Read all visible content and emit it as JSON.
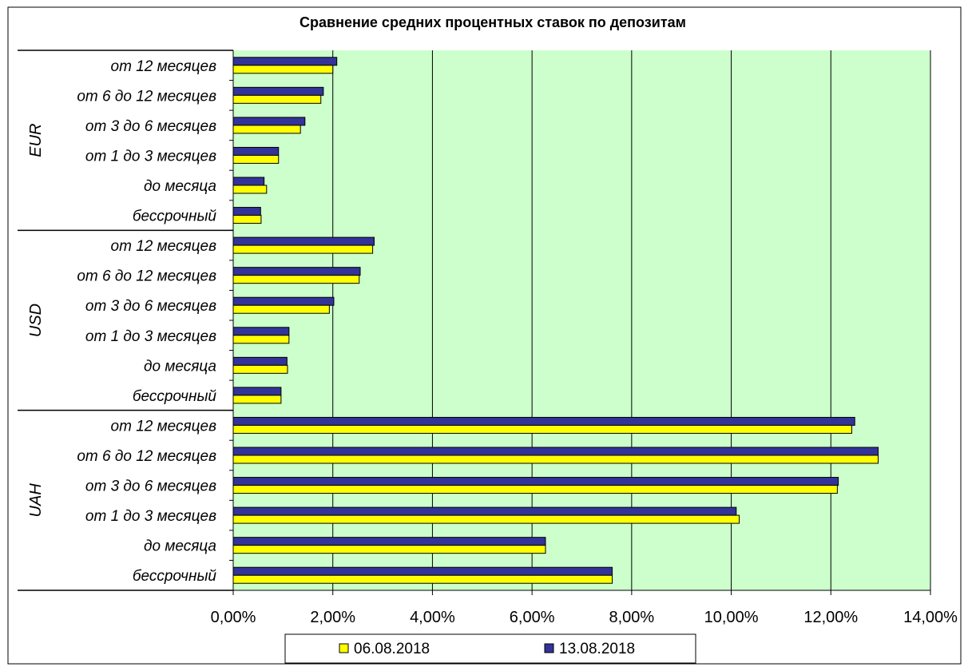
{
  "chart_data": {
    "type": "bar",
    "orientation": "horizontal",
    "title": "Сравнение средних процентных ставок по депозитам",
    "xlabel": "",
    "ylabel": "",
    "xlim": [
      0,
      14
    ],
    "x_ticks": [
      "0,00%",
      "2,00%",
      "4,00%",
      "6,00%",
      "8,00%",
      "10,00%",
      "12,00%",
      "14,00%"
    ],
    "grid": true,
    "plot_background": "#ccffcc",
    "legend_position": "bottom",
    "series": [
      {
        "name": "06.08.2018",
        "color": "#ffff00"
      },
      {
        "name": "13.08.2018",
        "color": "#333399"
      }
    ],
    "groups": [
      {
        "name": "EUR",
        "categories": [
          "от 12 месяцев",
          "от 6 до 12 месяцев",
          "от 3 до 6 месяцев",
          "от 1 до 3 месяцев",
          "до месяца",
          "бессрочный"
        ],
        "values": {
          "06.08.2018": [
            2.0,
            1.76,
            1.35,
            0.91,
            0.67,
            0.56
          ],
          "13.08.2018": [
            2.08,
            1.81,
            1.44,
            0.91,
            0.62,
            0.55
          ]
        }
      },
      {
        "name": "USD",
        "categories": [
          "от 12 месяцев",
          "от 6 до 12 месяцев",
          "от 3 до 6 месяцев",
          "от 1 до 3 месяцев",
          "до месяца",
          "бессрочный"
        ],
        "values": {
          "06.08.2018": [
            2.8,
            2.53,
            1.93,
            1.12,
            1.09,
            0.96
          ],
          "13.08.2018": [
            2.83,
            2.55,
            2.02,
            1.12,
            1.08,
            0.96
          ]
        }
      },
      {
        "name": "UAH",
        "categories": [
          "от 12 месяцев",
          "от 6 до 12 месяцев",
          "от 3 до 6 месяцев",
          "от 1 до 3 месяцев",
          "до месяца",
          "бессрочный"
        ],
        "values": {
          "06.08.2018": [
            12.42,
            12.95,
            12.13,
            10.16,
            6.27,
            7.61
          ],
          "13.08.2018": [
            12.48,
            12.95,
            12.15,
            10.1,
            6.27,
            7.61
          ]
        }
      }
    ]
  }
}
